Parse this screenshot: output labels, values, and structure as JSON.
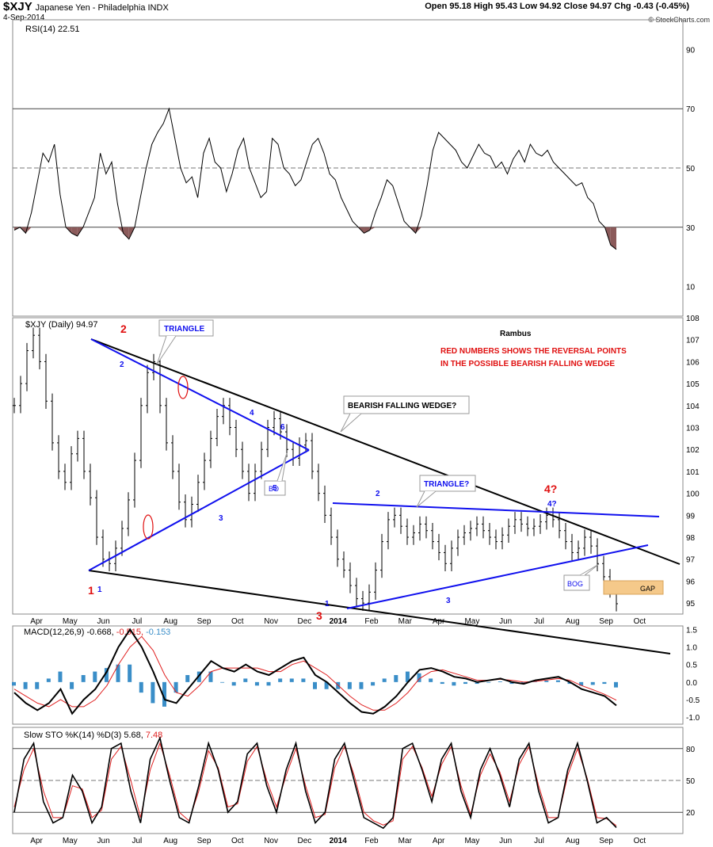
{
  "header": {
    "symbol": "$XJY",
    "name": "Japanese Yen - Philadelphia INDX",
    "date": "4-Sep-2014",
    "quote": "Open 95.18  High 95.43  Low 94.92  Close 94.97  Chg -0.43 (-0.45%)",
    "source": "© StockCharts.com"
  },
  "colors": {
    "price": "#000000",
    "blue_line": "#1010ee",
    "red_annot": "#e01010",
    "macd_signal": "#e02020",
    "histogram": "#3a8ec8",
    "rsi_fill": "#8b5a5a",
    "gap_fill": "#f5c98a"
  },
  "chart_data": [
    {
      "type": "line",
      "panel": "RSI",
      "title": "RSI(14) 22.51",
      "ylim": [
        0,
        100
      ],
      "y_ticks": [
        10,
        30,
        50,
        70,
        90
      ],
      "reference_lines": [
        30,
        50,
        70
      ],
      "series": [
        {
          "name": "RSI(14)",
          "values": [
            29,
            30,
            28,
            35,
            45,
            55,
            52,
            58,
            41,
            30,
            28,
            27,
            30,
            35,
            40,
            55,
            48,
            52,
            38,
            28,
            26,
            30,
            40,
            50,
            58,
            62,
            65,
            70,
            60,
            50,
            45,
            47,
            40,
            55,
            60,
            52,
            50,
            42,
            48,
            56,
            60,
            50,
            45,
            40,
            42,
            60,
            58,
            50,
            48,
            44,
            46,
            52,
            58,
            60,
            55,
            48,
            46,
            40,
            36,
            32,
            30,
            28,
            29,
            35,
            40,
            46,
            44,
            38,
            32,
            30,
            28,
            34,
            44,
            56,
            62,
            60,
            58,
            56,
            52,
            50,
            54,
            58,
            55,
            54,
            50,
            52,
            48,
            53,
            56,
            52,
            58,
            55,
            54,
            56,
            52,
            50,
            48,
            46,
            44,
            45,
            40,
            38,
            32,
            30,
            24,
            22.51
          ]
        }
      ],
      "grid": true
    },
    {
      "type": "bar",
      "panel": "Price",
      "title": "$XJY (Daily) 94.97",
      "ylim": [
        94.5,
        108
      ],
      "y_ticks": [
        95,
        96,
        97,
        98,
        99,
        100,
        101,
        102,
        103,
        104,
        105,
        106,
        107,
        108
      ],
      "x_ticks": [
        "Apr",
        "May",
        "Jun",
        "Jul",
        "Aug",
        "Sep",
        "Oct",
        "Nov",
        "Dec",
        "2014",
        "Feb",
        "Mar",
        "Apr",
        "May",
        "Jun",
        "Jul",
        "Aug",
        "Sep",
        "Oct"
      ],
      "series": [
        {
          "name": "$XJY",
          "values": [
            104.0,
            105.0,
            106.5,
            107.2,
            106.0,
            104.2,
            102.3,
            101.0,
            100.5,
            101.8,
            102.5,
            101.0,
            99.8,
            98.0,
            97.0,
            96.8,
            97.5,
            98.4,
            99.7,
            101.5,
            104.0,
            105.5,
            106.0,
            104.0,
            102.3,
            101.0,
            99.6,
            98.8,
            99.5,
            100.5,
            101.5,
            102.5,
            103.5,
            104.0,
            103.0,
            102.0,
            101.0,
            100.0,
            101.0,
            102.0,
            103.0,
            103.4,
            102.8,
            102.0,
            101.6,
            102.2,
            102.4,
            101.0,
            100.0,
            99.0,
            98.0,
            97.0,
            96.5,
            95.8,
            95.2,
            95.0,
            95.5,
            96.5,
            97.8,
            98.8,
            99.0,
            98.5,
            98.0,
            98.2,
            98.6,
            98.3,
            97.8,
            97.3,
            96.8,
            97.5,
            98.0,
            98.2,
            98.4,
            98.6,
            98.3,
            98.0,
            97.8,
            98.1,
            98.5,
            98.8,
            98.6,
            98.4,
            98.5,
            98.7,
            99.0,
            98.8,
            98.3,
            97.8,
            97.3,
            97.5,
            98.0,
            97.6,
            96.8,
            96.2,
            95.6,
            94.97
          ]
        }
      ],
      "annotations": [
        "TRIANGLE",
        "BEARISH FALLING WEDGE?",
        "TRIANGLE?",
        "BO",
        "BOG",
        "GAP",
        "Rambus",
        "RED NUMBERS SHOWS THE REVERSAL POINTS",
        "IN THE POSSIBLE BEARISH FALLING WEDGE"
      ],
      "grid": false
    },
    {
      "type": "line",
      "panel": "MACD",
      "title": "MACD(12,26,9) -0.668, -0.515, -0.153",
      "ylim": [
        -1.2,
        1.6
      ],
      "y_ticks": [
        1.5,
        1.0,
        0.5,
        0.0,
        -0.5,
        -1.0
      ],
      "series": [
        {
          "name": "MACD",
          "values": [
            -0.3,
            -0.6,
            -0.8,
            -0.6,
            -0.2,
            -0.9,
            -0.5,
            -0.2,
            0.3,
            1.0,
            1.5,
            1.0,
            0.3,
            -0.5,
            -0.6,
            -0.2,
            0.2,
            0.6,
            0.4,
            0.3,
            0.5,
            0.3,
            0.2,
            0.4,
            0.6,
            0.7,
            0.2,
            0.0,
            -0.3,
            -0.6,
            -0.85,
            -0.9,
            -0.7,
            -0.4,
            0.0,
            0.35,
            0.4,
            0.3,
            0.15,
            0.1,
            0.0,
            0.05,
            0.1,
            0.0,
            -0.05,
            0.05,
            0.1,
            0.15,
            0.0,
            -0.2,
            -0.3,
            -0.4,
            -0.668
          ]
        },
        {
          "name": "signal",
          "values": [
            -0.2,
            -0.4,
            -0.6,
            -0.7,
            -0.5,
            -0.7,
            -0.7,
            -0.5,
            -0.1,
            0.5,
            1.0,
            1.3,
            0.9,
            0.2,
            -0.3,
            -0.4,
            -0.1,
            0.3,
            0.4,
            0.4,
            0.4,
            0.4,
            0.3,
            0.3,
            0.5,
            0.6,
            0.4,
            0.2,
            -0.1,
            -0.4,
            -0.65,
            -0.8,
            -0.8,
            -0.6,
            -0.3,
            0.1,
            0.3,
            0.35,
            0.25,
            0.15,
            0.05,
            0.05,
            0.08,
            0.05,
            0.0,
            0.02,
            0.06,
            0.1,
            0.05,
            -0.1,
            -0.22,
            -0.35,
            -0.515
          ]
        }
      ],
      "grid": false
    },
    {
      "type": "line",
      "panel": "Slow STO",
      "title": "Slow STO %K(14) %D(3) 5.68, 7.48",
      "ylim": [
        0,
        100
      ],
      "y_ticks": [
        20,
        50,
        80
      ],
      "x_ticks": [
        "Apr",
        "May",
        "Jun",
        "Jul",
        "Aug",
        "Sep",
        "Oct",
        "Nov",
        "Dec",
        "2014",
        "Feb",
        "Mar",
        "Apr",
        "May",
        "Jun",
        "Jul",
        "Aug",
        "Sep",
        "Oct"
      ],
      "series": [
        {
          "name": "%K",
          "values": [
            20,
            70,
            85,
            30,
            10,
            15,
            55,
            40,
            10,
            25,
            80,
            85,
            40,
            10,
            70,
            90,
            50,
            15,
            10,
            45,
            85,
            60,
            20,
            30,
            75,
            85,
            45,
            20,
            60,
            85,
            40,
            10,
            20,
            70,
            85,
            50,
            15,
            10,
            5,
            15,
            80,
            85,
            60,
            30,
            70,
            85,
            40,
            15,
            60,
            80,
            55,
            25,
            70,
            85,
            40,
            10,
            15,
            60,
            85,
            50,
            10,
            15,
            5.68
          ]
        },
        {
          "name": "%D",
          "values": [
            25,
            60,
            80,
            40,
            15,
            15,
            45,
            42,
            15,
            22,
            70,
            82,
            50,
            15,
            60,
            85,
            55,
            20,
            12,
            40,
            78,
            62,
            25,
            28,
            68,
            82,
            50,
            25,
            55,
            80,
            45,
            15,
            18,
            62,
            82,
            55,
            20,
            12,
            8,
            12,
            70,
            82,
            62,
            35,
            65,
            82,
            45,
            18,
            55,
            75,
            58,
            30,
            65,
            82,
            45,
            15,
            15,
            55,
            80,
            52,
            15,
            14,
            7.48
          ]
        }
      ],
      "grid": false
    }
  ],
  "labels": {
    "rsi_title": "RSI(14) 22.51",
    "price_title": "$XJY (Daily) 94.97",
    "macd_title_a": "MACD(12,26,9)",
    "macd_title_b": "-0.668,",
    "macd_title_c": "-0.515,",
    "macd_title_d": "-0.153",
    "sto_title_a": "Slow STO %K(14) %D(3)",
    "sto_title_b": "5.68,",
    "sto_title_c": "7.48",
    "triangle": "TRIANGLE",
    "wedge": "BEARISH FALLING WEDGE?",
    "triangle_q": "TRIANGLE?",
    "bo": "BO",
    "bog": "BOG",
    "gap": "GAP",
    "rambus": "Rambus",
    "note1": "RED NUMBERS SHOWS THE REVERSAL POINTS",
    "note2": "IN THE POSSIBLE BEARISH FALLING WEDGE",
    "r1": "1",
    "r2": "2",
    "r3": "3",
    "r4": "4?",
    "b1": "1",
    "b2": "2",
    "b3": "3",
    "b4": "4",
    "b5": "5",
    "b6": "6",
    "c1": "1",
    "c2": "2",
    "c3": "3",
    "c4": "4?"
  }
}
